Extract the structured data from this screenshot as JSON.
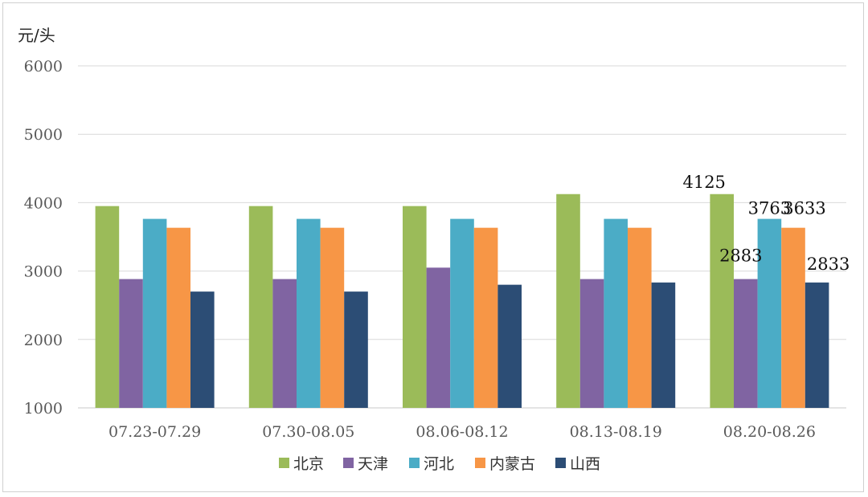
{
  "chart_data": {
    "type": "bar",
    "ylabel": "元/头",
    "ylim": [
      1000,
      6000
    ],
    "yticks": [
      1000,
      2000,
      3000,
      4000,
      5000,
      6000
    ],
    "grid": true,
    "legend_position": "bottom",
    "categories": [
      "07.23-07.29",
      "07.30-08.05",
      "08.06-08.12",
      "08.13-08.19",
      "08.20-08.26"
    ],
    "series": [
      {
        "name": "北京",
        "color": "#9BBB59",
        "values": [
          3950,
          3950,
          3950,
          4125,
          4125
        ]
      },
      {
        "name": "天津",
        "color": "#8064A2",
        "values": [
          2883,
          2883,
          3050,
          2883,
          2883
        ]
      },
      {
        "name": "河北",
        "color": "#4BACC6",
        "values": [
          3763,
          3763,
          3763,
          3763,
          3763
        ]
      },
      {
        "name": "内蒙古",
        "color": "#F79646",
        "values": [
          3633,
          3633,
          3633,
          3633,
          3633
        ]
      },
      {
        "name": "山西",
        "color": "#2C4D75",
        "values": [
          2700,
          2700,
          2800,
          2833,
          2833
        ]
      }
    ],
    "data_labels": [
      {
        "category_index": 4,
        "series_index": 0,
        "text": "4125"
      },
      {
        "category_index": 4,
        "series_index": 1,
        "text": "2883"
      },
      {
        "category_index": 4,
        "series_index": 2,
        "text": "3763"
      },
      {
        "category_index": 4,
        "series_index": 3,
        "text": "3633"
      },
      {
        "category_index": 4,
        "series_index": 4,
        "text": "2833"
      }
    ]
  }
}
